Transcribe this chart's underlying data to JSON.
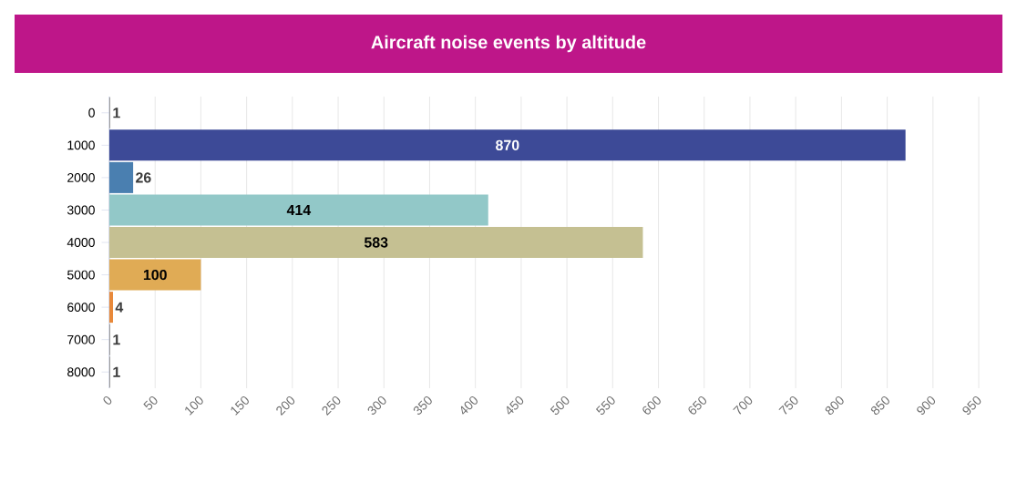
{
  "chart_data": {
    "type": "bar",
    "orientation": "horizontal",
    "title": "Aircraft noise events by altitude",
    "categories": [
      "0",
      "1000",
      "2000",
      "3000",
      "4000",
      "5000",
      "6000",
      "7000",
      "8000"
    ],
    "values": [
      1,
      870,
      26,
      414,
      583,
      100,
      4,
      1,
      1
    ],
    "colors": [
      "#9a9a9a",
      "#3d4a97",
      "#4a7fb0",
      "#92c8c8",
      "#c5c092",
      "#e0ab55",
      "#e8893a",
      "#9a9a9a",
      "#9a9a9a"
    ],
    "xlim": [
      0,
      950
    ],
    "xticks": [
      0,
      50,
      100,
      150,
      200,
      250,
      300,
      350,
      400,
      450,
      500,
      550,
      600,
      650,
      700,
      750,
      800,
      850,
      900,
      950
    ],
    "grid": "x",
    "data_labels": true
  }
}
